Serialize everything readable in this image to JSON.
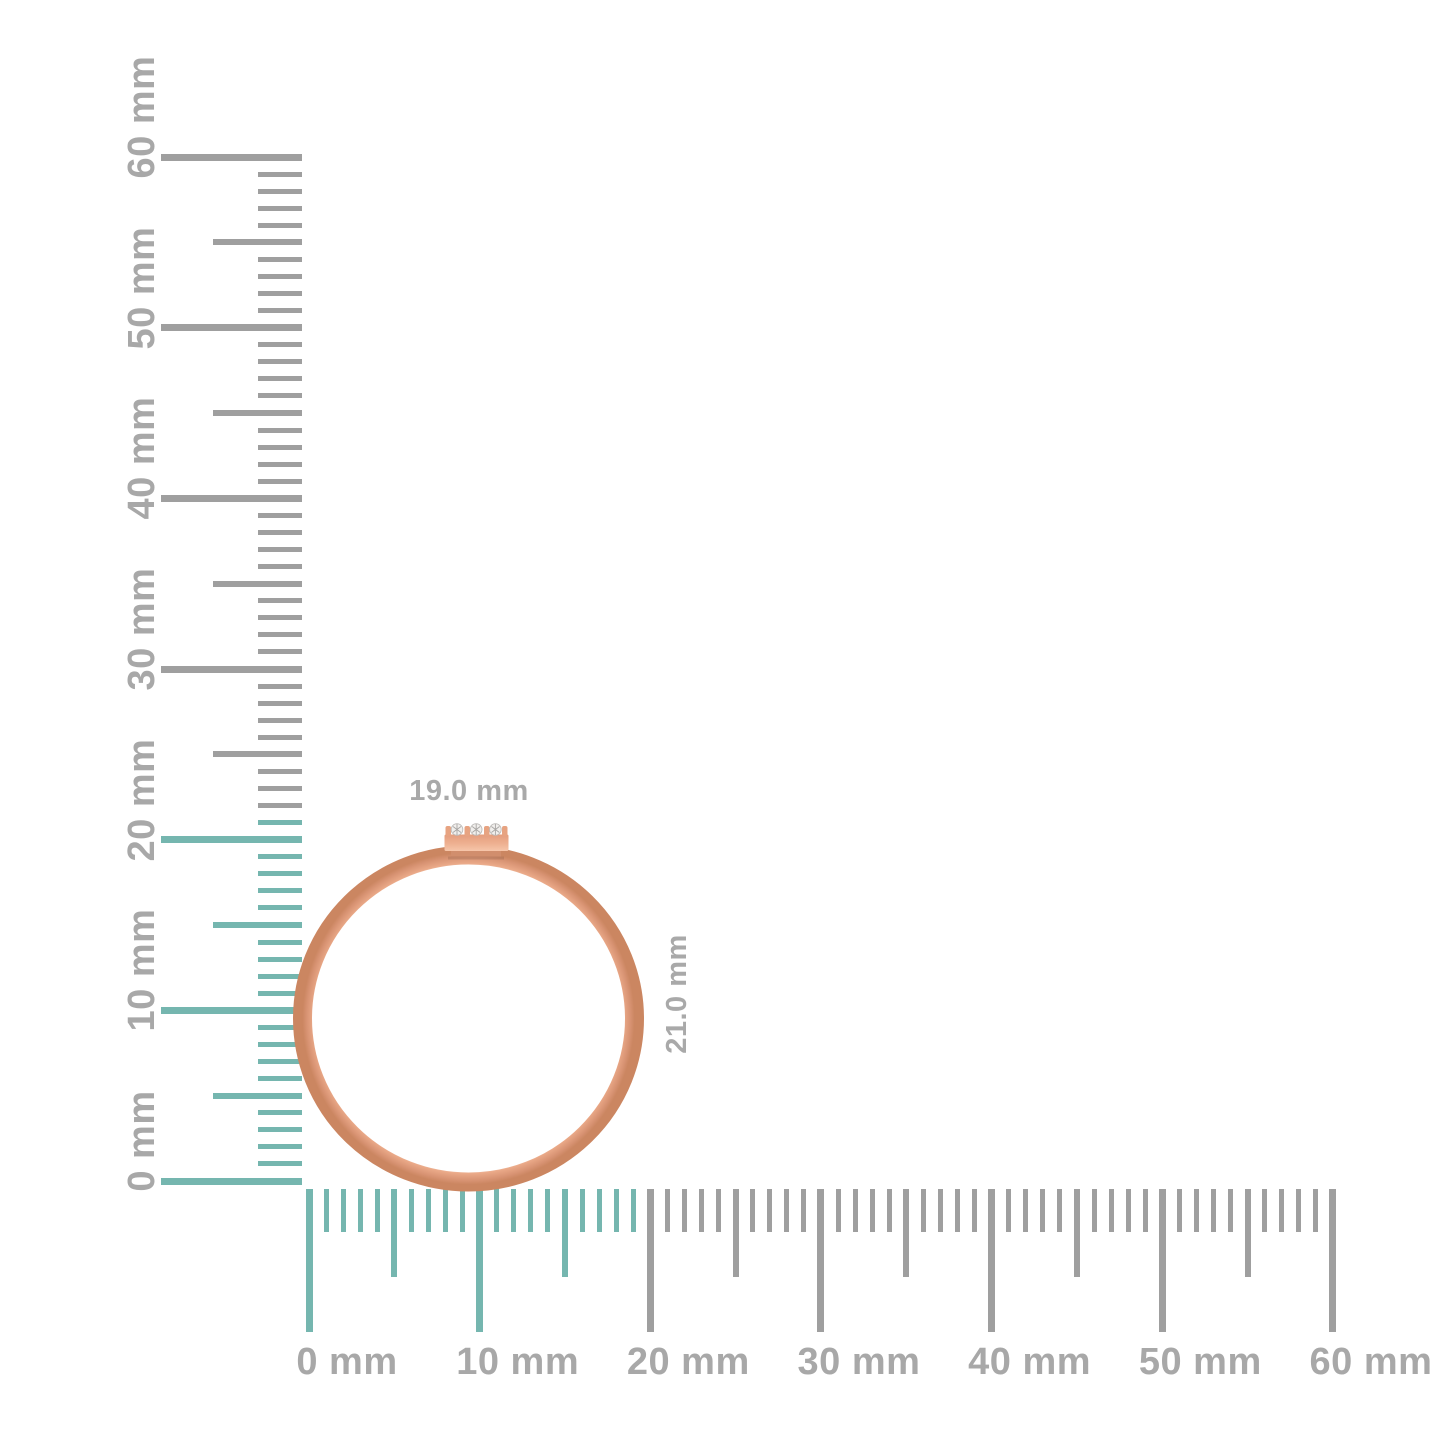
{
  "figure": {
    "description": "ring-size-guide",
    "background": "#ffffff",
    "object": {
      "type": "ring-front-view",
      "band_color": "#eaa988",
      "band_highlight": "#f8dbc9",
      "band_shadow_inner": "#dd9a7a",
      "band_shadow_outer": "#cb8661",
      "band_dark_edge": "#d89373",
      "bar_top_color": "#e49d7d",
      "bar_bottom_color": "#f6c6aa",
      "seat_color": "#d18e6d",
      "prong_color": "#e7a381",
      "diamond_color": "#f1efed",
      "diamond_edge_color": "#bdbbb9",
      "diamond_facet_color": "#a8a6a4",
      "stone_count": 3
    },
    "dimension_labels": {
      "width": "19.0 mm",
      "height": "21.0 mm",
      "color": "#a9a9a9"
    },
    "rulers": {
      "unit": "mm",
      "tick_color_default": "#9f9f9f",
      "tick_color_highlight": "#75b6af",
      "label_color": "#a8a8a8",
      "vertical": {
        "min": 0,
        "max": 60,
        "minor_step": 1,
        "medium_step": 5,
        "major_step": 10,
        "highlight_up_to_mm": 21,
        "labels": [
          "0 mm",
          "10 mm",
          "20 mm",
          "30 mm",
          "40 mm",
          "50 mm",
          "60 mm"
        ]
      },
      "horizontal": {
        "min": 0,
        "max": 60,
        "minor_step": 1,
        "medium_step": 5,
        "major_step": 10,
        "highlight_up_to_mm": 19,
        "labels": [
          "0 mm",
          "10 mm",
          "20 mm",
          "30 mm",
          "40 mm",
          "50 mm",
          "60 mm"
        ]
      }
    }
  }
}
